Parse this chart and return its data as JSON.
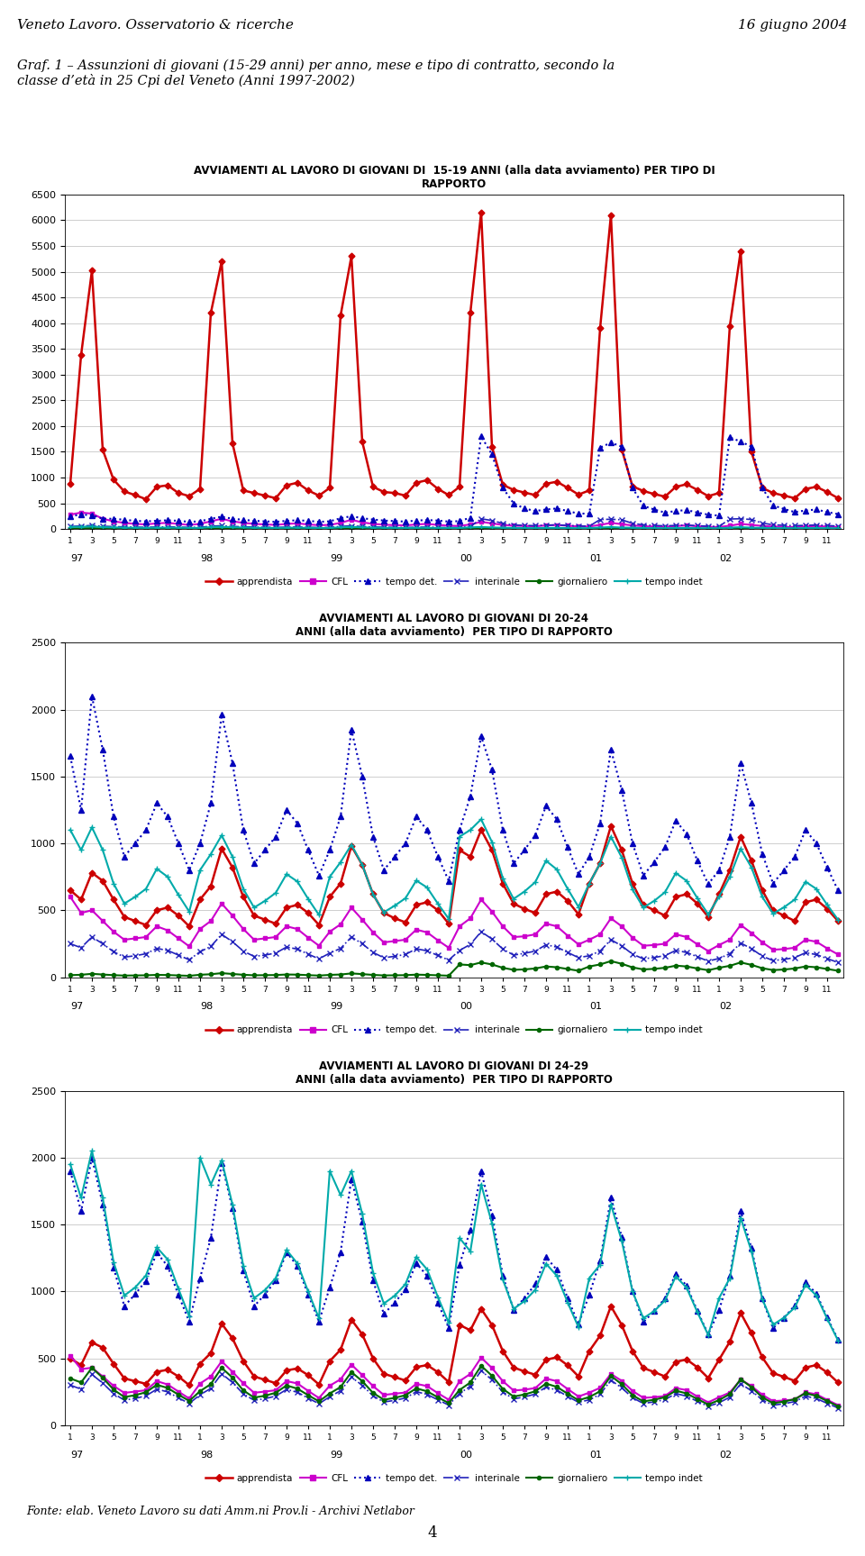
{
  "header_left": "Veneto Lavoro. Osservatorio & ricerche",
  "header_right": "16 giugno 2004",
  "graph_title": "Graf. 1 – Assunzioni di giovani (15-29 anni) per anno, mese e tipo di contratto, secondo la\nclasse d’età in 25 Cpi del Veneto (Anni 1997-2002)",
  "footer": "Fonte: elab. Veneto Lavoro su dati Amm.ni Prov.li - Archivi Netlabor",
  "page_number": "4",
  "chart1_title": "AVVIAMENTI AL LAVORO DI GIOVANI DI  15-19 ANNI (alla data avviamento) PER TIPO DI\nRAPPORTO",
  "chart2_title": "AVVIAMENTI AL LAVORO DI GIOVANI DI 20-24\nANNI (alla data avviamento)  PER TIPO DI RAPPORTO",
  "chart3_title": "AVVIAMENTI AL LAVORO DI GIOVANI DI 24-29\nANNI (alla data avviamento)  PER TIPO DI RAPPORTO",
  "chart1_ylim": [
    0,
    6500
  ],
  "chart1_yticks": [
    0,
    500,
    1000,
    1500,
    2000,
    2500,
    3000,
    3500,
    4000,
    4500,
    5000,
    5500,
    6000,
    6500
  ],
  "chart2_ylim": [
    0,
    2500
  ],
  "chart2_yticks": [
    0,
    500,
    1000,
    1500,
    2000,
    2500
  ],
  "chart3_ylim": [
    0,
    2500
  ],
  "chart3_yticks": [
    0,
    500,
    1000,
    1500,
    2000,
    2500
  ],
  "year_labels": [
    "97",
    "98",
    "99",
    "00",
    "01",
    "02"
  ],
  "chart1_apprendista": [
    880,
    3380,
    5020,
    1540,
    960,
    730,
    660,
    580,
    820,
    850,
    700,
    640,
    780,
    4200,
    5200,
    1670,
    750,
    700,
    650,
    600,
    850,
    900,
    750,
    650,
    800,
    4150,
    5300,
    1700,
    820,
    720,
    700,
    650,
    900,
    950,
    780,
    660,
    820,
    4200,
    6150,
    1600,
    860,
    760,
    710,
    660,
    880,
    920,
    800,
    670,
    750,
    3900,
    6100,
    1550,
    830,
    740,
    680,
    630,
    820,
    870,
    760,
    640,
    700,
    3950,
    5400,
    1500,
    800,
    700,
    650,
    600,
    780,
    820,
    720,
    600
  ],
  "chart1_CFL": [
    280,
    320,
    300,
    200,
    150,
    120,
    100,
    90,
    110,
    120,
    100,
    80,
    100,
    150,
    200,
    150,
    120,
    100,
    90,
    80,
    100,
    110,
    90,
    75,
    80,
    120,
    180,
    130,
    100,
    85,
    75,
    70,
    90,
    100,
    80,
    65,
    60,
    90,
    140,
    110,
    80,
    65,
    60,
    55,
    70,
    80,
    65,
    50,
    50,
    80,
    120,
    95,
    70,
    55,
    48,
    42,
    60,
    70,
    55,
    42,
    40,
    65,
    100,
    80,
    60,
    48,
    42,
    38,
    52,
    60,
    48,
    38
  ],
  "chart1_tempo_det": [
    250,
    280,
    270,
    200,
    200,
    180,
    160,
    150,
    160,
    170,
    160,
    140,
    150,
    200,
    240,
    200,
    180,
    160,
    150,
    140,
    160,
    170,
    160,
    140,
    150,
    210,
    250,
    210,
    185,
    165,
    155,
    145,
    165,
    175,
    165,
    145,
    155,
    220,
    1800,
    1450,
    800,
    500,
    400,
    350,
    380,
    400,
    350,
    300,
    300,
    1580,
    1680,
    1600,
    800,
    450,
    380,
    320,
    350,
    370,
    320,
    280,
    260,
    1780,
    1700,
    1600,
    800,
    460,
    390,
    330,
    360,
    380,
    330,
    290
  ],
  "chart1_interinale": [
    50,
    60,
    70,
    55,
    48,
    42,
    38,
    35,
    40,
    42,
    38,
    33,
    35,
    55,
    65,
    50,
    45,
    38,
    35,
    32,
    38,
    40,
    35,
    30,
    32,
    52,
    62,
    48,
    42,
    36,
    33,
    30,
    36,
    38,
    33,
    28,
    30,
    48,
    200,
    165,
    110,
    80,
    70,
    65,
    75,
    80,
    70,
    60,
    55,
    185,
    190,
    180,
    110,
    80,
    70,
    62,
    70,
    75,
    65,
    55,
    50,
    195,
    200,
    185,
    115,
    82,
    72,
    65,
    72,
    78,
    68,
    58
  ],
  "chart1_giornaliero": [
    10,
    15,
    18,
    12,
    10,
    8,
    7,
    6,
    8,
    9,
    7,
    6,
    7,
    12,
    15,
    11,
    9,
    7,
    6,
    6,
    7,
    8,
    7,
    5,
    6,
    11,
    14,
    10,
    8,
    7,
    6,
    5,
    7,
    7,
    6,
    5,
    5,
    10,
    13,
    9,
    7,
    6,
    5,
    5,
    6,
    7,
    6,
    5,
    5,
    9,
    12,
    8,
    7,
    5,
    5,
    4,
    6,
    6,
    5,
    4,
    4,
    9,
    11,
    8,
    6,
    5,
    4,
    4,
    5,
    6,
    5,
    4
  ],
  "chart1_tempo_indet": [
    40,
    45,
    50,
    38,
    32,
    28,
    25,
    23,
    27,
    28,
    25,
    22,
    23,
    38,
    45,
    35,
    30,
    25,
    23,
    21,
    25,
    27,
    23,
    20,
    21,
    35,
    42,
    33,
    28,
    24,
    21,
    20,
    23,
    25,
    21,
    18,
    20,
    33,
    40,
    31,
    26,
    22,
    20,
    18,
    22,
    23,
    20,
    17,
    18,
    30,
    38,
    29,
    25,
    20,
    18,
    17,
    20,
    21,
    18,
    16,
    16,
    28,
    36,
    27,
    23,
    19,
    17,
    16,
    19,
    20,
    17,
    15
  ],
  "chart2_apprendista": [
    650,
    580,
    780,
    720,
    580,
    450,
    420,
    390,
    500,
    520,
    460,
    380,
    580,
    680,
    960,
    820,
    600,
    460,
    430,
    400,
    520,
    540,
    480,
    390,
    600,
    700,
    980,
    840,
    620,
    480,
    440,
    410,
    540,
    560,
    500,
    400,
    950,
    900,
    1100,
    950,
    700,
    550,
    510,
    480,
    620,
    640,
    570,
    470,
    700,
    850,
    1130,
    950,
    700,
    540,
    500,
    460,
    600,
    620,
    550,
    450,
    620,
    800,
    1050,
    870,
    650,
    500,
    460,
    420,
    560,
    580,
    510,
    420
  ],
  "chart2_CFL": [
    600,
    480,
    500,
    420,
    340,
    280,
    290,
    300,
    380,
    350,
    290,
    230,
    360,
    420,
    550,
    460,
    360,
    280,
    290,
    300,
    380,
    360,
    295,
    235,
    340,
    395,
    520,
    430,
    335,
    260,
    270,
    280,
    355,
    335,
    275,
    220,
    380,
    440,
    580,
    490,
    380,
    300,
    305,
    320,
    400,
    380,
    310,
    245,
    280,
    320,
    440,
    380,
    295,
    235,
    240,
    250,
    320,
    300,
    245,
    195,
    240,
    280,
    390,
    330,
    260,
    205,
    210,
    220,
    280,
    265,
    215,
    170
  ],
  "chart2_tempo_det": [
    1650,
    1250,
    2100,
    1700,
    1200,
    900,
    1000,
    1100,
    1300,
    1200,
    1000,
    800,
    1000,
    1300,
    1960,
    1600,
    1100,
    850,
    950,
    1050,
    1250,
    1150,
    950,
    760,
    950,
    1200,
    1850,
    1500,
    1050,
    800,
    900,
    1000,
    1200,
    1100,
    900,
    720,
    1100,
    1350,
    1800,
    1550,
    1100,
    850,
    950,
    1060,
    1280,
    1180,
    970,
    770,
    900,
    1150,
    1700,
    1400,
    1000,
    760,
    860,
    970,
    1170,
    1070,
    870,
    695,
    800,
    1050,
    1600,
    1300,
    920,
    700,
    800,
    900,
    1100,
    1000,
    820,
    650
  ],
  "chart2_interinale": [
    250,
    220,
    300,
    250,
    190,
    150,
    160,
    175,
    215,
    200,
    165,
    130,
    190,
    230,
    320,
    265,
    195,
    155,
    165,
    180,
    225,
    210,
    172,
    137,
    180,
    215,
    300,
    250,
    185,
    145,
    156,
    170,
    212,
    197,
    162,
    128,
    200,
    245,
    340,
    285,
    210,
    165,
    178,
    195,
    242,
    225,
    185,
    146,
    160,
    195,
    280,
    234,
    172,
    137,
    147,
    161,
    200,
    185,
    152,
    120,
    140,
    175,
    255,
    213,
    157,
    124,
    133,
    146,
    183,
    169,
    139,
    110
  ],
  "chart2_giornaliero": [
    15,
    18,
    25,
    20,
    15,
    12,
    13,
    14,
    17,
    16,
    13,
    10,
    18,
    22,
    30,
    24,
    18,
    14,
    15,
    16,
    20,
    19,
    15,
    12,
    17,
    20,
    28,
    23,
    17,
    13,
    14,
    15,
    19,
    17,
    14,
    11,
    95,
    90,
    110,
    95,
    70,
    55,
    58,
    65,
    80,
    74,
    61,
    48,
    80,
    95,
    120,
    100,
    73,
    58,
    62,
    70,
    86,
    80,
    65,
    52,
    70,
    85,
    110,
    92,
    67,
    53,
    57,
    65,
    80,
    74,
    61,
    48
  ],
  "chart2_tempo_indet": [
    1100,
    950,
    1120,
    950,
    700,
    550,
    600,
    660,
    810,
    750,
    615,
    490,
    800,
    920,
    1060,
    900,
    660,
    520,
    570,
    630,
    770,
    715,
    585,
    465,
    750,
    860,
    990,
    840,
    618,
    485,
    534,
    590,
    722,
    670,
    549,
    436,
    1050,
    1100,
    1180,
    1010,
    740,
    585,
    640,
    710,
    870,
    805,
    660,
    525,
    700,
    850,
    1050,
    895,
    655,
    520,
    570,
    635,
    778,
    720,
    590,
    470,
    600,
    750,
    960,
    820,
    600,
    475,
    522,
    580,
    713,
    660,
    541,
    430
  ],
  "chart3_apprendista": [
    500,
    450,
    620,
    580,
    460,
    350,
    330,
    310,
    400,
    415,
    365,
    300,
    460,
    540,
    760,
    650,
    480,
    365,
    340,
    315,
    410,
    425,
    375,
    305,
    480,
    565,
    790,
    680,
    500,
    385,
    360,
    335,
    435,
    450,
    397,
    323,
    750,
    710,
    870,
    750,
    555,
    432,
    403,
    378,
    490,
    508,
    448,
    365,
    555,
    670,
    890,
    750,
    555,
    428,
    398,
    365,
    474,
    492,
    433,
    353,
    490,
    625,
    840,
    690,
    508,
    390,
    362,
    332,
    432,
    450,
    395,
    320
  ],
  "chart3_CFL": [
    520,
    420,
    430,
    365,
    295,
    242,
    252,
    262,
    330,
    305,
    252,
    200,
    312,
    365,
    478,
    400,
    314,
    243,
    252,
    262,
    330,
    313,
    257,
    204,
    296,
    344,
    454,
    375,
    293,
    227,
    236,
    245,
    310,
    293,
    240,
    191,
    330,
    384,
    506,
    428,
    330,
    260,
    266,
    278,
    349,
    330,
    271,
    215,
    244,
    280,
    384,
    332,
    257,
    205,
    210,
    219,
    278,
    263,
    215,
    171,
    210,
    245,
    342,
    293,
    228,
    180,
    185,
    193,
    246,
    232,
    190,
    151
  ],
  "chart3_tempo_det": [
    1900,
    1600,
    2000,
    1650,
    1180,
    890,
    980,
    1080,
    1290,
    1190,
    975,
    775,
    1100,
    1400,
    1960,
    1620,
    1155,
    890,
    978,
    1082,
    1292,
    1192,
    977,
    777,
    1030,
    1295,
    1840,
    1520,
    1082,
    832,
    916,
    1015,
    1212,
    1117,
    915,
    728,
    1200,
    1460,
    1900,
    1570,
    1120,
    862,
    950,
    1054,
    1258,
    1161,
    951,
    756,
    975,
    1230,
    1700,
    1408,
    1004,
    772,
    852,
    949,
    1133,
    1044,
    855,
    680,
    860,
    1120,
    1600,
    1325,
    946,
    726,
    802,
    895,
    1067,
    985,
    806,
    641
  ],
  "chart3_interinale": [
    300,
    270,
    380,
    315,
    237,
    188,
    201,
    220,
    270,
    250,
    205,
    163,
    228,
    276,
    386,
    320,
    235,
    187,
    199,
    218,
    268,
    247,
    203,
    161,
    214,
    258,
    360,
    299,
    220,
    174,
    186,
    204,
    251,
    231,
    190,
    151,
    238,
    292,
    408,
    340,
    249,
    197,
    212,
    233,
    286,
    263,
    216,
    172,
    190,
    232,
    337,
    280,
    206,
    163,
    175,
    192,
    237,
    218,
    179,
    142,
    168,
    211,
    310,
    258,
    190,
    150,
    161,
    177,
    218,
    200,
    164,
    130
  ],
  "chart3_giornaliero": [
    350,
    320,
    430,
    355,
    267,
    211,
    225,
    247,
    303,
    279,
    229,
    182,
    255,
    308,
    430,
    356,
    261,
    207,
    221,
    243,
    298,
    274,
    225,
    179,
    238,
    286,
    398,
    330,
    242,
    191,
    205,
    225,
    276,
    254,
    209,
    166,
    264,
    320,
    445,
    370,
    272,
    215,
    230,
    254,
    312,
    287,
    236,
    187,
    211,
    254,
    369,
    307,
    225,
    178,
    191,
    210,
    259,
    238,
    196,
    155,
    188,
    234,
    344,
    285,
    209,
    165,
    177,
    195,
    240,
    220,
    181,
    143
  ],
  "chart3_tempo_indet": [
    1950,
    1700,
    2050,
    1700,
    1220,
    970,
    1030,
    1120,
    1330,
    1240,
    1020,
    815,
    2000,
    1800,
    1980,
    1650,
    1190,
    950,
    1010,
    1100,
    1310,
    1210,
    1000,
    800,
    1900,
    1720,
    1900,
    1580,
    1140,
    910,
    968,
    1055,
    1258,
    1165,
    958,
    765,
    1400,
    1300,
    1800,
    1510,
    1090,
    870,
    928,
    1012,
    1208,
    1117,
    918,
    733,
    1100,
    1200,
    1650,
    1380,
    1000,
    800,
    853,
    933,
    1113,
    1028,
    845,
    675,
    950,
    1100,
    1550,
    1300,
    944,
    752,
    804,
    880,
    1050,
    970,
    797,
    635
  ]
}
